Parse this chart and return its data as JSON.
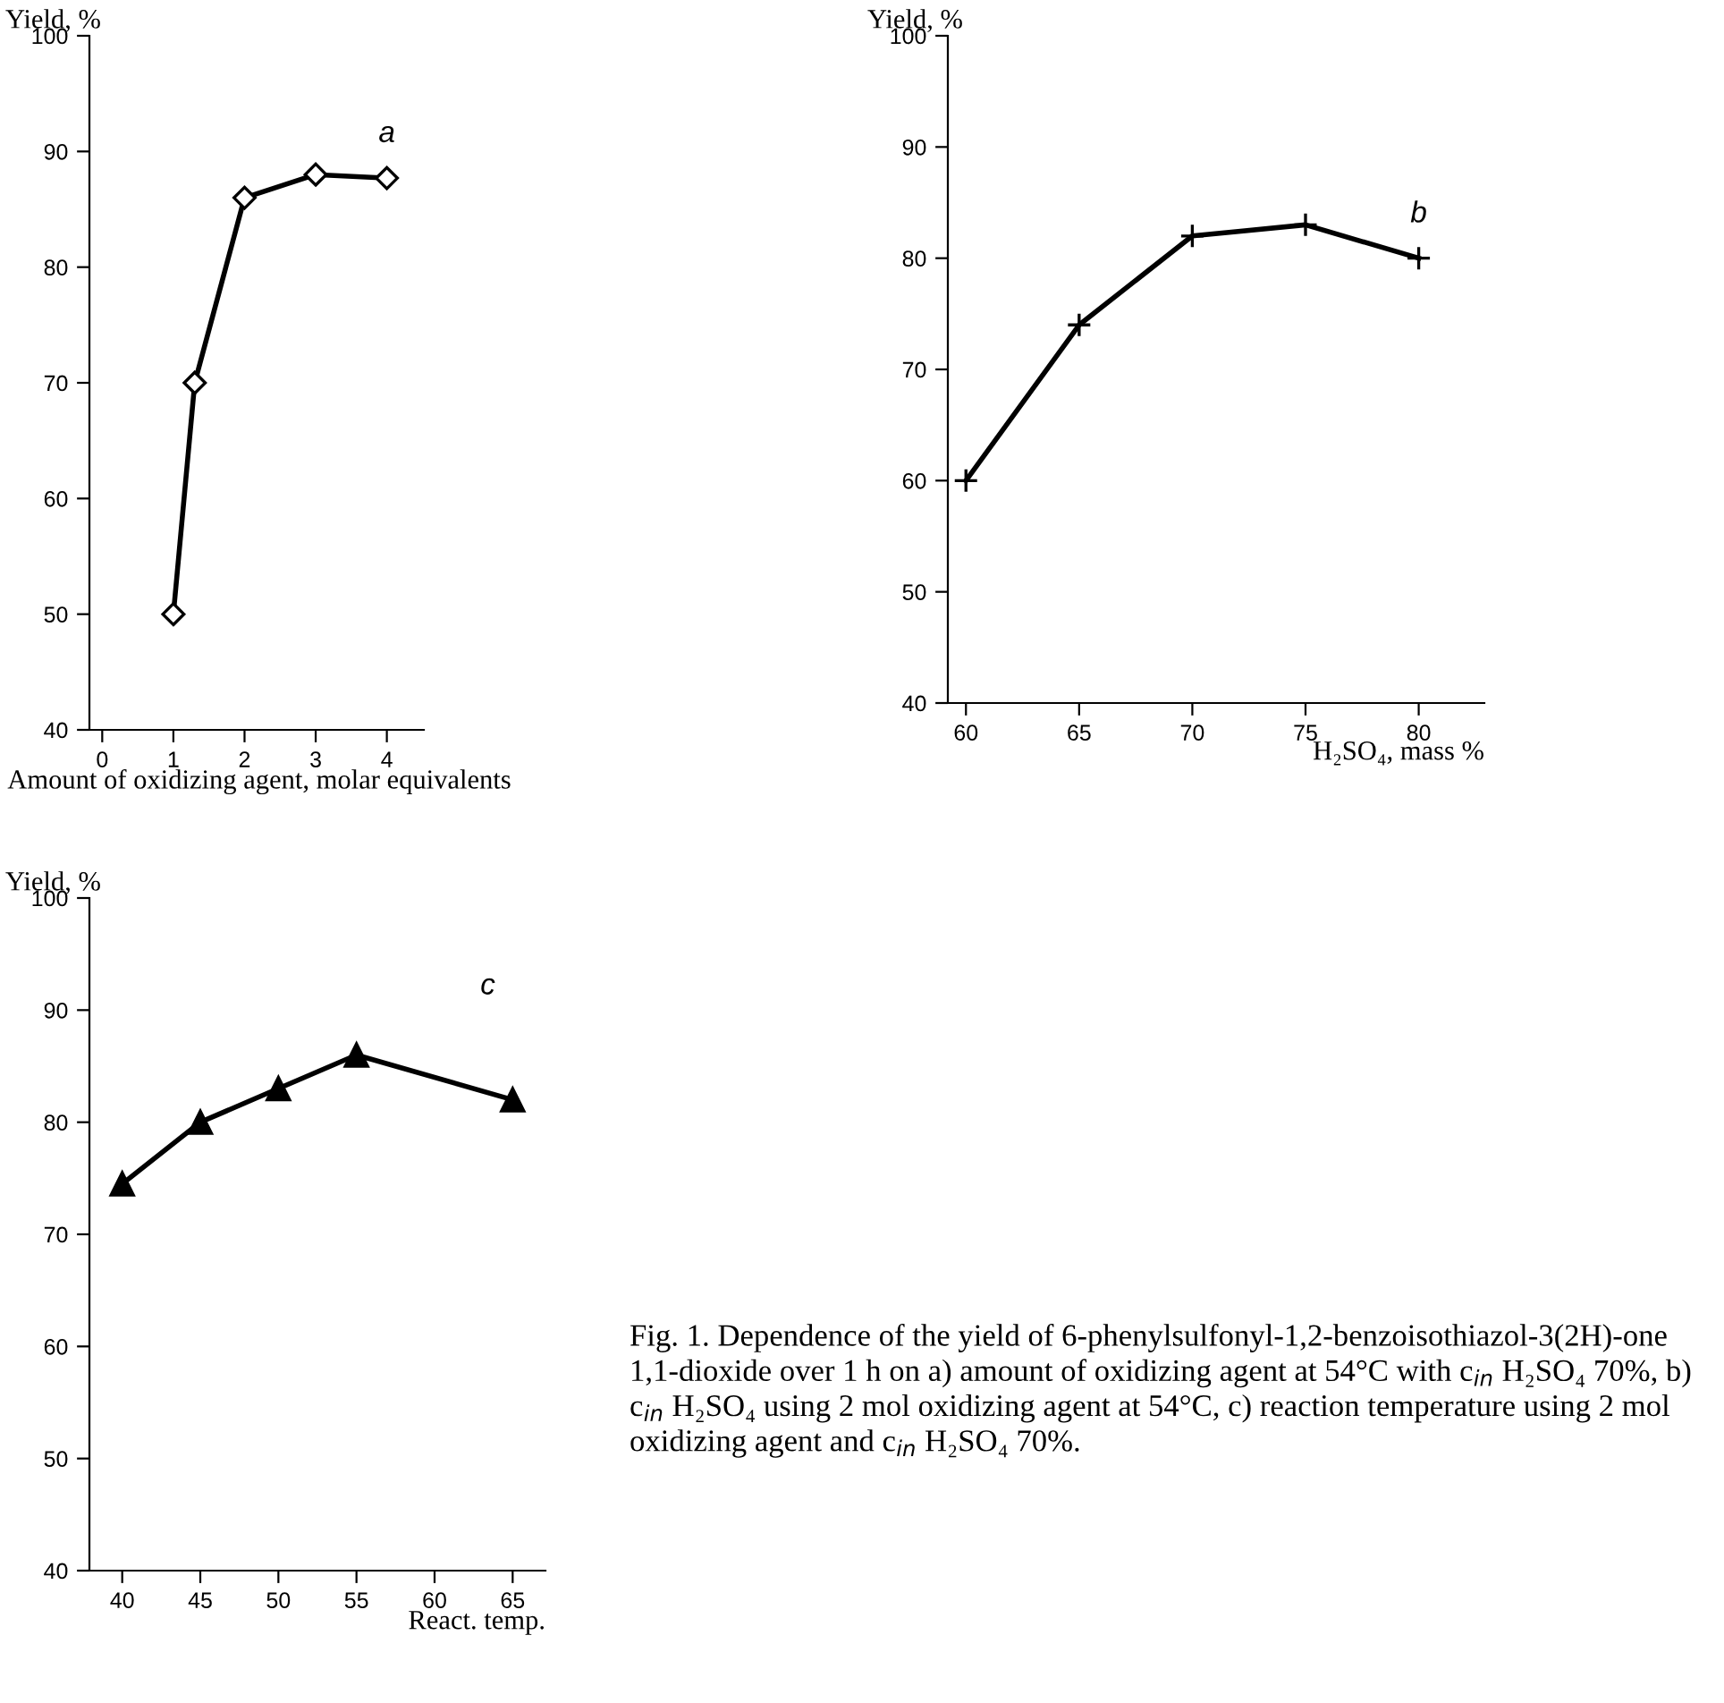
{
  "chart_data": [
    {
      "type": "line",
      "ylabel": "Yield, %",
      "xlabel": "Amount of oxidizing agent, molar equivalents",
      "x": [
        1,
        1.3,
        2,
        3,
        4
      ],
      "values": [
        50,
        70,
        86,
        88,
        87.7
      ],
      "color": "#000000",
      "marker": "diamond",
      "line_style": "solid",
      "xlim": [
        -0.18,
        4.52
      ],
      "ylim": [
        40,
        100
      ],
      "xticks": [
        0,
        1,
        2,
        3,
        4
      ],
      "yticks": [
        40,
        50,
        60,
        70,
        80,
        90,
        100
      ],
      "grid": false,
      "annotations": [
        "a"
      ]
    },
    {
      "type": "line",
      "ylabel": "Yield, %",
      "xlabel": "H₂SO₄, mass %",
      "x": [
        60,
        65,
        70,
        75,
        80
      ],
      "values": [
        60,
        74,
        82,
        83,
        80
      ],
      "color": "#000000",
      "marker": "cross",
      "line_style": "solid",
      "xlim": [
        59.2,
        82.9
      ],
      "ylim": [
        40,
        100
      ],
      "xticks": [
        60,
        65,
        70,
        75,
        80
      ],
      "yticks": [
        40,
        50,
        60,
        70,
        80,
        90,
        100
      ],
      "grid": false,
      "annotations": [
        "b"
      ]
    },
    {
      "type": "line",
      "ylabel": "Yield, %",
      "xlabel": "React. temp.",
      "x": [
        40,
        45,
        50,
        55,
        65
      ],
      "values": [
        74.5,
        80,
        83,
        86,
        82
      ],
      "color": "#000000",
      "marker": "triangle",
      "line_style": "solid",
      "xlim": [
        37.9,
        67.1
      ],
      "ylim": [
        40,
        100
      ],
      "xticks": [
        40,
        45,
        50,
        55,
        60,
        65
      ],
      "yticks": [
        40,
        50,
        60,
        70,
        80,
        90,
        100
      ],
      "grid": false,
      "annotations": [
        "c",
        "Fig. 1. Dependence of the yield of 6-phenylsulfonyl-1,2-benzoisothiazol-3(2H)-one 1,1-dioxide over 1 h on a) amount of oxidizing agent at 54°C with c$_{in}$ H₂SO₄ 70%, b) c$_{in}$ H₂SO₄ using 2 mol oxidizing agent at 54°C, c) reaction temperature using 2 mol oxidizing agent and c$_{in}$ H₂SO₄ 70%."
      ]
    }
  ]
}
